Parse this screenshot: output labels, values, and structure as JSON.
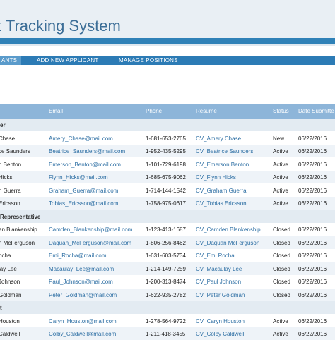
{
  "header": {
    "title": "t Tracking System"
  },
  "nav": {
    "items": [
      {
        "label": "ANTS"
      },
      {
        "label": "ADD NEW APPLICANT"
      },
      {
        "label": "MANAGE POSITIONS"
      }
    ]
  },
  "table": {
    "headers": [
      "Email",
      "Phone",
      "Resume",
      "Status",
      "Date Submitte"
    ],
    "groups": [
      {
        "label": "er",
        "rows": [
          {
            "name": "Chase",
            "email": "Amery_Chase@mail.com",
            "phone": "1-681-653-2765",
            "resume": "CV_Amery Chase",
            "status": "New",
            "date": "06/22/2016"
          },
          {
            "name": "ce Saunders",
            "email": "Beatrice_Saunders@mail.com",
            "phone": "1-952-435-5295",
            "resume": "CV_Beatrice Saunders",
            "status": "Active",
            "date": "06/22/2016"
          },
          {
            "name": "n Benton",
            "email": "Emerson_Benton@mail.com",
            "phone": "1-101-729-6198",
            "resume": "CV_Emerson Benton",
            "status": "Active",
            "date": "06/22/2016"
          },
          {
            "name": "Hicks",
            "email": "Flynn_Hicks@mail.com",
            "phone": "1-685-675-9062",
            "resume": "CV_Flynn Hicks",
            "status": "Active",
            "date": "06/22/2016"
          },
          {
            "name": "n Guerra",
            "email": "Graham_Guerra@mail.com",
            "phone": "1-714-144-1542",
            "resume": "CV_Graham Guerra",
            "status": "Active",
            "date": "06/22/2016"
          },
          {
            "name": "Ericsson",
            "email": "Tobias_Ericsson@mail.com",
            "phone": "1-758-975-0617",
            "resume": "CV_Tobias Ericsson",
            "status": "Active",
            "date": "06/22/2016"
          }
        ]
      },
      {
        "label": "Representative",
        "rows": [
          {
            "name": "en Blankenship",
            "email": "Camden_Blankenship@mail.com",
            "phone": "1-123-413-1687",
            "resume": "CV_Camden Blankenship",
            "status": "Closed",
            "date": "06/22/2016"
          },
          {
            "name": "n McFerguson",
            "email": "Daquan_McFerguson@mail.com",
            "phone": "1-806-256-8462",
            "resume": "CV_Daquan McFerguson",
            "status": "Closed",
            "date": "06/22/2016"
          },
          {
            "name": "ocha",
            "email": "Emi_Rocha@mail.com",
            "phone": "1-631-603-5734",
            "resume": "CV_Emi Rocha",
            "status": "Closed",
            "date": "06/22/2016"
          },
          {
            "name": "lay Lee",
            "email": "Macaulay_Lee@mail.com",
            "phone": "1-214-149-7259",
            "resume": "CV_Macaulay Lee",
            "status": "Closed",
            "date": "06/22/2016"
          },
          {
            "name": "Johnson",
            "email": "Paul_Johnson@mail.com",
            "phone": "1-200-313-8474",
            "resume": "CV_Paul Johnson",
            "status": "Closed",
            "date": "06/22/2016"
          },
          {
            "name": "Goldman",
            "email": "Peter_Goldman@mail.com",
            "phone": "1-622-935-2782",
            "resume": "CV_Peter Goldman",
            "status": "Closed",
            "date": "06/22/2016"
          }
        ]
      },
      {
        "label": "t",
        "rows": [
          {
            "name": "Houston",
            "email": "Caryn_Houston@mail.com",
            "phone": "1-278-564-9722",
            "resume": "CV_Caryn Houston",
            "status": "Active",
            "date": "06/22/2016"
          },
          {
            "name": "Caldwell",
            "email": "Colby_Caldwell@mail.com",
            "phone": "1-211-418-3455",
            "resume": "CV_Colby Caldwell",
            "status": "Active",
            "date": "06/22/2016"
          }
        ]
      }
    ]
  }
}
